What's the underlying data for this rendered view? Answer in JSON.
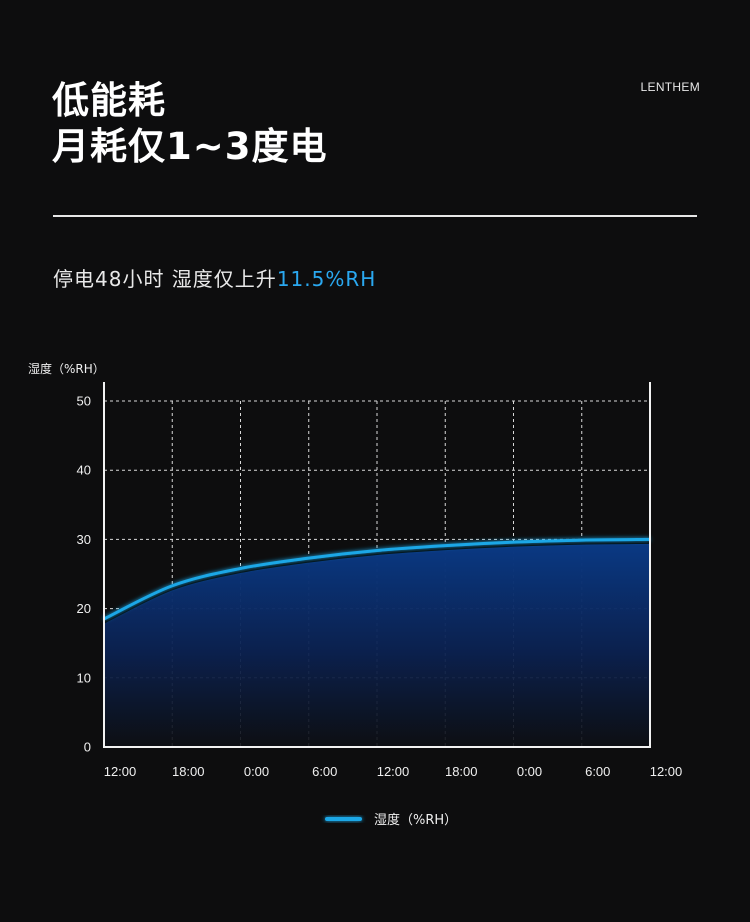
{
  "header": {
    "headline_line1": "低能耗",
    "headline_line2": "月耗仅1~3度电",
    "brand": "LENTHEM"
  },
  "subheadline": {
    "text": "停电48小时 湿度仅上升",
    "highlight": "11.5%RH",
    "highlight_color": "#2aa8f0"
  },
  "chart_data": {
    "type": "area",
    "title": "",
    "ylabel": "湿度（%RH）",
    "xlabel": "",
    "categories": [
      "12:00",
      "18:00",
      "0:00",
      "6:00",
      "12:00",
      "18:00",
      "0:00",
      "6:00",
      "12:00"
    ],
    "ylim": [
      0,
      50
    ],
    "yticks": [
      0,
      10,
      20,
      30,
      40,
      50
    ],
    "grid": true,
    "legend": "bottom-center",
    "series": [
      {
        "name": "湿度（%RH）",
        "color": "#1aa7e6",
        "x_hours": [
          0,
          6,
          12,
          18,
          24,
          30,
          36,
          42,
          48
        ],
        "values": [
          18.5,
          23.3,
          25.8,
          27.3,
          28.4,
          29.1,
          29.6,
          29.9,
          30.0
        ]
      }
    ]
  }
}
